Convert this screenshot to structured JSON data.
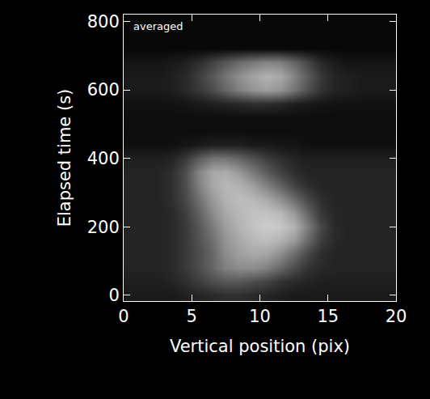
{
  "chart_data": {
    "type": "heatmap",
    "x_label": "Vertical position (pix)",
    "y_label": "Elapsed time (s)",
    "annotations": [
      "averaged"
    ],
    "color": "gray",
    "x": [
      0.5,
      1.5,
      2.5,
      3.5,
      4.5,
      5.5,
      6.5,
      7.5,
      8.5,
      9.5,
      10.5,
      11.5,
      12.5,
      13.5,
      14.5,
      15.5,
      16.5,
      17.5,
      18.5,
      19.5
    ],
    "y": [
      0,
      40,
      80,
      120,
      160,
      200,
      240,
      280,
      320,
      360,
      400,
      440,
      480,
      520,
      560,
      600,
      640,
      680,
      720,
      760,
      800
    ],
    "z": [
      [
        10,
        10,
        10,
        10,
        12,
        14,
        16,
        18,
        18,
        16,
        14,
        12,
        10,
        10,
        10,
        10,
        10,
        10,
        10,
        10
      ],
      [
        12,
        12,
        12,
        14,
        18,
        24,
        30,
        34,
        34,
        30,
        26,
        20,
        16,
        14,
        12,
        12,
        12,
        12,
        12,
        12
      ],
      [
        14,
        14,
        14,
        16,
        22,
        30,
        40,
        50,
        55,
        55,
        50,
        40,
        30,
        20,
        16,
        14,
        14,
        14,
        14,
        14
      ],
      [
        14,
        14,
        14,
        16,
        22,
        30,
        40,
        55,
        62,
        66,
        64,
        55,
        42,
        28,
        18,
        14,
        14,
        14,
        14,
        14
      ],
      [
        14,
        14,
        14,
        16,
        22,
        32,
        44,
        58,
        66,
        72,
        74,
        70,
        60,
        42,
        24,
        16,
        14,
        14,
        14,
        14
      ],
      [
        14,
        14,
        14,
        16,
        22,
        34,
        48,
        62,
        70,
        76,
        80,
        78,
        70,
        50,
        28,
        16,
        14,
        14,
        14,
        14
      ],
      [
        14,
        14,
        14,
        16,
        24,
        38,
        55,
        66,
        72,
        76,
        76,
        72,
        60,
        40,
        22,
        15,
        14,
        14,
        14,
        14
      ],
      [
        14,
        14,
        14,
        18,
        28,
        44,
        60,
        70,
        74,
        72,
        66,
        56,
        42,
        28,
        18,
        14,
        14,
        14,
        14,
        14
      ],
      [
        14,
        14,
        14,
        18,
        30,
        50,
        66,
        72,
        70,
        62,
        50,
        38,
        26,
        18,
        14,
        14,
        14,
        14,
        14,
        14
      ],
      [
        14,
        14,
        14,
        18,
        30,
        52,
        66,
        68,
        60,
        48,
        36,
        26,
        18,
        14,
        14,
        14,
        14,
        14,
        14,
        14
      ],
      [
        12,
        12,
        12,
        14,
        22,
        36,
        46,
        46,
        40,
        32,
        24,
        18,
        14,
        12,
        12,
        12,
        12,
        12,
        12,
        12
      ],
      [
        6,
        6,
        6,
        6,
        8,
        10,
        12,
        12,
        12,
        10,
        10,
        8,
        8,
        6,
        6,
        6,
        6,
        6,
        6,
        6
      ],
      [
        5,
        5,
        5,
        5,
        5,
        5,
        5,
        5,
        5,
        5,
        5,
        5,
        5,
        5,
        5,
        5,
        5,
        5,
        5,
        5
      ],
      [
        5,
        5,
        5,
        5,
        5,
        5,
        5,
        5,
        5,
        5,
        5,
        5,
        5,
        5,
        5,
        5,
        5,
        5,
        5,
        5
      ],
      [
        7,
        7,
        7,
        7,
        8,
        10,
        12,
        14,
        16,
        18,
        18,
        16,
        12,
        10,
        8,
        7,
        7,
        7,
        7,
        7
      ],
      [
        10,
        10,
        10,
        12,
        16,
        22,
        30,
        40,
        50,
        58,
        62,
        58,
        46,
        32,
        20,
        14,
        12,
        10,
        10,
        10
      ],
      [
        10,
        10,
        10,
        12,
        16,
        24,
        34,
        46,
        56,
        64,
        70,
        66,
        52,
        36,
        22,
        14,
        12,
        10,
        10,
        10
      ],
      [
        8,
        8,
        8,
        10,
        12,
        18,
        26,
        34,
        42,
        48,
        52,
        50,
        40,
        28,
        16,
        10,
        8,
        8,
        8,
        8
      ],
      [
        3,
        3,
        3,
        3,
        3,
        3,
        3,
        3,
        3,
        3,
        3,
        3,
        3,
        3,
        3,
        3,
        3,
        3,
        3,
        3
      ],
      [
        3,
        3,
        3,
        3,
        3,
        3,
        3,
        3,
        3,
        3,
        3,
        3,
        3,
        3,
        3,
        3,
        3,
        3,
        3,
        3
      ],
      [
        3,
        3,
        3,
        3,
        3,
        3,
        3,
        3,
        3,
        3,
        3,
        3,
        3,
        3,
        3,
        3,
        3,
        3,
        3,
        3
      ]
    ],
    "zlim": [
      0,
      100
    ],
    "xlim": [
      0,
      20
    ],
    "ylim": [
      -17,
      820
    ],
    "xticks": [
      0,
      5,
      10,
      15,
      20
    ],
    "yticks": [
      0,
      200,
      400,
      600,
      800
    ]
  }
}
